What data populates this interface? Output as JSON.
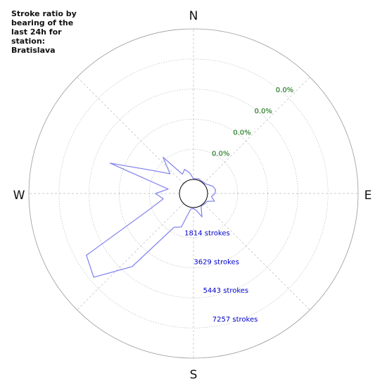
{
  "chart_data": {
    "type": "polar-line",
    "title": "Stroke ratio by\nbearing of the\nlast 24h for\nstation:\nBratislava",
    "station": "Bratislava",
    "directions": [
      "N",
      "E",
      "S",
      "W"
    ],
    "ratio_labels": [
      "0.0%",
      "0.0%",
      "0.0%",
      "0.0%"
    ],
    "stroke_labels": [
      "1814 strokes",
      "3629 strokes",
      "5443 strokes",
      "7257 strokes"
    ],
    "ring_values": [
      1814,
      3629,
      5443,
      7257
    ],
    "r_max": 9072,
    "colors": {
      "series": "#8888ee",
      "stroke_labels": "#0000cc",
      "ratio_labels": "#006600",
      "grid": "#bbbbbb",
      "outer": "#999999"
    },
    "series": [
      {
        "points": [
          {
            "bearing": 0,
            "strokes": 40
          },
          {
            "bearing": 10,
            "strokes": 60
          },
          {
            "bearing": 20,
            "strokes": 90
          },
          {
            "bearing": 30,
            "strokes": 50
          },
          {
            "bearing": 40,
            "strokes": 60
          },
          {
            "bearing": 50,
            "strokes": 70
          },
          {
            "bearing": 60,
            "strokes": 200
          },
          {
            "bearing": 70,
            "strokes": 400
          },
          {
            "bearing": 80,
            "strokes": 500
          },
          {
            "bearing": 90,
            "strokes": 450
          },
          {
            "bearing": 100,
            "strokes": 250
          },
          {
            "bearing": 110,
            "strokes": 500
          },
          {
            "bearing": 120,
            "strokes": 100
          },
          {
            "bearing": 130,
            "strokes": 80
          },
          {
            "bearing": 140,
            "strokes": 50
          },
          {
            "bearing": 150,
            "strokes": 60
          },
          {
            "bearing": 160,
            "strokes": 650
          },
          {
            "bearing": 170,
            "strokes": 200
          },
          {
            "bearing": 180,
            "strokes": 50
          },
          {
            "bearing": 190,
            "strokes": 100
          },
          {
            "bearing": 200,
            "strokes": 1300
          },
          {
            "bearing": 210,
            "strokes": 1500
          },
          {
            "bearing": 220,
            "strokes": 4900
          },
          {
            "bearing": 230,
            "strokes": 7000
          },
          {
            "bearing": 240,
            "strokes": 6600
          },
          {
            "bearing": 250,
            "strokes": 2000
          },
          {
            "bearing": 260,
            "strokes": 1000
          },
          {
            "bearing": 270,
            "strokes": 1450
          },
          {
            "bearing": 280,
            "strokes": 700
          },
          {
            "bearing": 290,
            "strokes": 4500
          },
          {
            "bearing": 300,
            "strokes": 1900
          },
          {
            "bearing": 310,
            "strokes": 1000
          },
          {
            "bearing": 320,
            "strokes": 2000
          },
          {
            "bearing": 330,
            "strokes": 500
          },
          {
            "bearing": 340,
            "strokes": 700
          },
          {
            "bearing": 350,
            "strokes": 400
          }
        ]
      }
    ]
  }
}
